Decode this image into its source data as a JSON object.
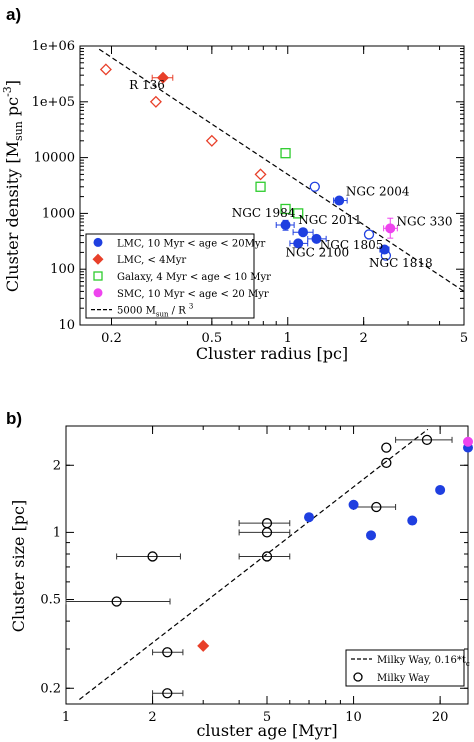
{
  "panels": [
    {
      "panel_label": "a)",
      "type": "scatter",
      "xlabel": "Cluster radius [pc]",
      "ylabel": "Cluster density [M",
      "ylabel_sub": "sun",
      "ylabel_tail": " pc",
      "ylabel_sup": "-3",
      "ylabel_close": "]",
      "xscale": "log",
      "yscale": "log",
      "xlim": [
        0.15,
        5
      ],
      "ylim": [
        10,
        1000000
      ],
      "xticks": [
        {
          "v": 0.2,
          "label": "0.2"
        },
        {
          "v": 0.5,
          "label": "0.5"
        },
        {
          "v": 1,
          "label": "1"
        },
        {
          "v": 2,
          "label": "2"
        },
        {
          "v": 5,
          "label": "5"
        }
      ],
      "yticks": [
        {
          "v": 10,
          "label": "10"
        },
        {
          "v": 100,
          "label": "100"
        },
        {
          "v": 1000,
          "label": "1000"
        },
        {
          "v": 10000,
          "label": "10000"
        },
        {
          "v": 100000,
          "label": "1e+05"
        },
        {
          "v": 1000000,
          "label": "1e+06"
        }
      ],
      "legend": {
        "placement": "bottom-left",
        "entries": [
          {
            "label": "LMC, 10 Myr < age < 20Myr",
            "marker": "circle-filled",
            "color": "#1f3fe0"
          },
          {
            "label": "LMC, < 4Myr",
            "marker": "diamond-filled",
            "color": "#e8402a"
          },
          {
            "label": "Galaxy, 4 Myr < age < 10 Myr",
            "marker": "square-open",
            "color": "#2ecc2e"
          },
          {
            "label": "SMC, 10 Myr < age < 20 Myr",
            "marker": "circle-filled",
            "color": "#ee44ee"
          },
          {
            "label": "5000 M",
            "label_sub": "sun",
            "label_tail": " / R ",
            "label_sup": "3",
            "marker": "dashed-line",
            "color": "#000000"
          }
        ]
      },
      "fit_line": {
        "coef": 5000,
        "power": -3,
        "xrange": [
          0.15,
          5
        ]
      },
      "series": [
        {
          "marker": "diamond-open",
          "color": "#e8402a",
          "points": [
            {
              "x": 0.19,
              "y": 380000
            },
            {
              "x": 0.3,
              "y": 100000
            },
            {
              "x": 0.5,
              "y": 20000
            },
            {
              "x": 0.78,
              "y": 5000
            }
          ]
        },
        {
          "marker": "diamond-filled",
          "color": "#e8402a",
          "points": [
            {
              "x": 0.32,
              "y": 270000,
              "xerr": [
                0.29,
                0.35
              ]
            }
          ]
        },
        {
          "marker": "square-open",
          "color": "#2ecc2e",
          "points": [
            {
              "x": 0.78,
              "y": 3000
            },
            {
              "x": 0.98,
              "y": 12000
            },
            {
              "x": 0.98,
              "y": 1200
            },
            {
              "x": 1.1,
              "y": 1000
            }
          ]
        },
        {
          "marker": "circle-open",
          "color": "#1f3fe0",
          "points": [
            {
              "x": 1.28,
              "y": 3000
            },
            {
              "x": 2.1,
              "y": 420
            },
            {
              "x": 2.45,
              "y": 175
            }
          ]
        },
        {
          "marker": "circle-filled",
          "color": "#1f3fe0",
          "points": [
            {
              "x": 1.6,
              "y": 1700,
              "xerr": [
                1.52,
                1.72
              ]
            },
            {
              "x": 0.98,
              "y": 620,
              "xerr": [
                0.9,
                1.06
              ],
              "yerr": [
                500,
                750
              ]
            },
            {
              "x": 1.15,
              "y": 460,
              "xerr": [
                1.05,
                1.26
              ]
            },
            {
              "x": 1.1,
              "y": 290,
              "xerr": [
                1.02,
                1.2
              ]
            },
            {
              "x": 1.3,
              "y": 350,
              "xerr": [
                1.2,
                1.42
              ]
            },
            {
              "x": 2.42,
              "y": 225,
              "xerr": [
                2.32,
                2.52
              ]
            }
          ]
        },
        {
          "marker": "circle-filled",
          "color": "#ee44ee",
          "points": [
            {
              "x": 2.55,
              "y": 540,
              "xerr": [
                2.4,
                2.72
              ],
              "yerr": [
                360,
                820
              ]
            }
          ]
        }
      ],
      "annotations": [
        {
          "text": "R 136",
          "x": 0.235,
          "y": 170000
        },
        {
          "text": "NGC 2004",
          "x": 1.7,
          "y": 2100
        },
        {
          "text": "NGC 1984",
          "x": 0.6,
          "y": 870
        },
        {
          "text": "NGC 2011",
          "x": 1.1,
          "y": 640
        },
        {
          "text": "NGC 330",
          "x": 2.7,
          "y": 610
        },
        {
          "text": "NGC 2100",
          "x": 0.98,
          "y": 170
        },
        {
          "text": "NGC 1805",
          "x": 1.34,
          "y": 230
        },
        {
          "text": "NGC 1818",
          "x": 2.1,
          "y": 110
        }
      ]
    },
    {
      "panel_label": "b)",
      "type": "scatter",
      "xlabel": "cluster age [Myr]",
      "ylabel": "Cluster size [pc]",
      "xscale": "log",
      "yscale": "log",
      "xlim": [
        1,
        25
      ],
      "ylim": [
        0.17,
        3
      ],
      "xticks": [
        {
          "v": 1,
          "label": "1"
        },
        {
          "v": 2,
          "label": "2"
        },
        {
          "v": 5,
          "label": "5"
        },
        {
          "v": 10,
          "label": "10"
        },
        {
          "v": 20,
          "label": "20"
        }
      ],
      "yticks": [
        {
          "v": 0.2,
          "label": "0.2"
        },
        {
          "v": 0.5,
          "label": "0.5"
        },
        {
          "v": 1,
          "label": "1"
        },
        {
          "v": 2,
          "label": "2"
        }
      ],
      "legend": {
        "placement": "bottom-right",
        "entries": [
          {
            "label": "Milky Way, 0.16*t",
            "label_sub": "c",
            "marker": "dashed-line",
            "color": "#000000"
          },
          {
            "label": "Milky Way",
            "marker": "circle-open",
            "color": "#000000"
          }
        ]
      },
      "fit_line": {
        "coef": 0.16,
        "power": 1,
        "xrange": [
          1,
          25
        ]
      },
      "series": [
        {
          "marker": "circle-open",
          "color": "#000000",
          "points": [
            {
              "x": 1.5,
              "y": 0.49,
              "xerr": [
                1.0,
                2.3
              ]
            },
            {
              "x": 2.0,
              "y": 0.78,
              "xerr": [
                1.5,
                2.5
              ]
            },
            {
              "x": 2.25,
              "y": 0.29,
              "xerr": [
                2.0,
                2.55
              ]
            },
            {
              "x": 2.25,
              "y": 0.19,
              "xerr": [
                2.0,
                2.55
              ]
            },
            {
              "x": 5.0,
              "y": 1.1,
              "xerr": [
                4.0,
                6.0
              ]
            },
            {
              "x": 5.0,
              "y": 1.0,
              "xerr": [
                4.0,
                6.0
              ]
            },
            {
              "x": 5.0,
              "y": 0.78,
              "xerr": [
                4.0,
                6.0
              ]
            },
            {
              "x": 12.0,
              "y": 1.3,
              "xerr": [
                10.0,
                14.0
              ]
            },
            {
              "x": 13.0,
              "y": 2.4
            },
            {
              "x": 13.0,
              "y": 2.05
            },
            {
              "x": 18.0,
              "y": 2.6,
              "xerr": [
                14.0,
                22.0
              ]
            }
          ]
        },
        {
          "marker": "circle-filled",
          "color": "#1f3fe0",
          "points": [
            {
              "x": 7.0,
              "y": 1.17
            },
            {
              "x": 10.0,
              "y": 1.33
            },
            {
              "x": 11.5,
              "y": 0.97
            },
            {
              "x": 16.0,
              "y": 1.13
            },
            {
              "x": 20.0,
              "y": 1.55
            },
            {
              "x": 25.0,
              "y": 2.4
            }
          ]
        },
        {
          "marker": "diamond-filled",
          "color": "#e8402a",
          "points": [
            {
              "x": 3.0,
              "y": 0.31
            }
          ]
        },
        {
          "marker": "circle-filled",
          "color": "#ee44ee",
          "points": [
            {
              "x": 25.0,
              "y": 2.55
            }
          ]
        }
      ],
      "annotations": []
    }
  ]
}
